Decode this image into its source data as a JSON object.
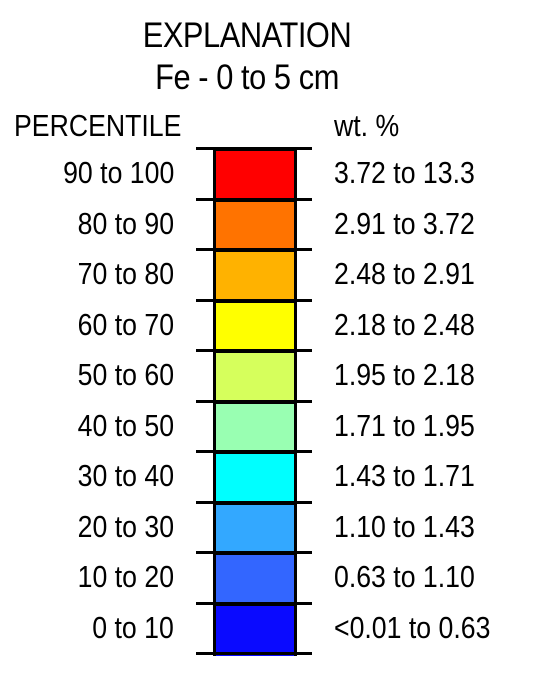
{
  "title": "EXPLANATION",
  "subtitle": "Fe - 0 to 5 cm",
  "headers": {
    "percentile": "PERCENTILE",
    "value": "wt. %"
  },
  "rows": [
    {
      "percentile": "90 to 100",
      "range": "3.72 to 13.3",
      "color": "#ff0000"
    },
    {
      "percentile": "80 to 90",
      "range": "2.91 to 3.72",
      "color": "#ff7300"
    },
    {
      "percentile": "70 to 80",
      "range": "2.48 to 2.91",
      "color": "#ffb200"
    },
    {
      "percentile": "60 to 70",
      "range": "2.18 to 2.48",
      "color": "#ffff00"
    },
    {
      "percentile": "50 to 60",
      "range": "1.95 to 2.18",
      "color": "#d6ff5c"
    },
    {
      "percentile": "40 to 50",
      "range": "1.71 to 1.95",
      "color": "#99ffb2"
    },
    {
      "percentile": "30 to 40",
      "range": "1.43 to 1.71",
      "color": "#00ffff"
    },
    {
      "percentile": "20 to 30",
      "range": "1.10 to 1.43",
      "color": "#33a8ff"
    },
    {
      "percentile": "10 to 20",
      "range": "0.63 to 1.10",
      "color": "#3366ff"
    },
    {
      "percentile": "0 to 10",
      "range": "<0.01 to 0.63",
      "color": "#0a0aff"
    }
  ]
}
